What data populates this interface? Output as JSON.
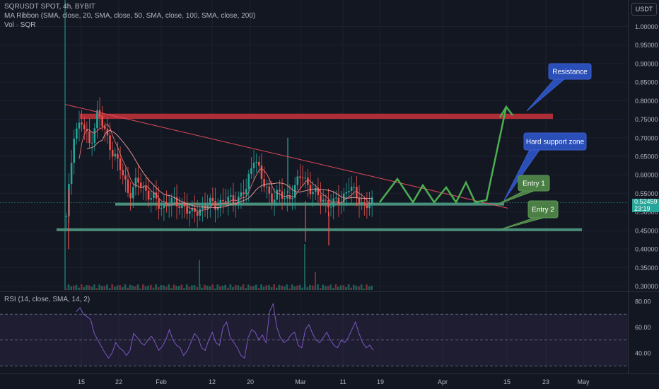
{
  "legend": {
    "symbol": "SQRUSDT SPOT, 4h, BYBIT",
    "ma_ribbon": "MA Ribbon (SMA, close, 20, SMA, close, 50, SMA, close, 100, SMA, close, 200)",
    "volume": "Vol · SQR",
    "rsi": "RSI (14, close, SMA, 14, 2)"
  },
  "currency": "USDT",
  "last_price": "0.52459",
  "countdown": "23:19",
  "colors": {
    "background": "#131722",
    "up": "#26a69a",
    "down": "#ef5350",
    "resistance": "#c0313a",
    "support": "#4a8f7a",
    "projection": "#4caf50",
    "trendline": "#e0485a",
    "rsi_line": "#7e57c2",
    "callout_blue": "#2a4fb8",
    "callout_green": "#4c7f46"
  },
  "chart_data": {
    "type": "candlestick",
    "symbol": "SQRUSDT",
    "timeframe": "4h",
    "exchange": "BYBIT",
    "price_axis": {
      "ylim": [
        0.29,
        1.02
      ],
      "ticks": [
        "1.00000",
        "0.95000",
        "0.90000",
        "0.85000",
        "0.80000",
        "0.75000",
        "0.70000",
        "0.65000",
        "0.60000",
        "0.55000",
        "0.50000",
        "0.45000",
        "0.40000",
        "0.35000",
        "0.30000"
      ]
    },
    "time_axis": {
      "ticks": [
        "15",
        "22",
        "Feb",
        "12",
        "20",
        "Mar",
        "11",
        "19",
        "Apr",
        "15",
        "23",
        "May"
      ]
    },
    "price_path": [
      [
        "15",
        0.48
      ],
      [
        "16",
        0.72
      ],
      [
        "17",
        0.74
      ],
      [
        "18",
        0.68
      ],
      [
        "19",
        0.77
      ],
      [
        "20",
        0.71
      ],
      [
        "21",
        0.66
      ],
      [
        "22",
        0.61
      ],
      [
        "25",
        0.55
      ],
      [
        "27",
        0.58
      ],
      [
        "29",
        0.56
      ],
      [
        "Feb",
        0.54
      ],
      [
        "04",
        0.51
      ],
      [
        "06",
        0.53
      ],
      [
        "08",
        0.52
      ],
      [
        "10",
        0.52
      ],
      [
        "12",
        0.49
      ],
      [
        "14",
        0.51
      ],
      [
        "16",
        0.52
      ],
      [
        "18",
        0.52
      ],
      [
        "20",
        0.53
      ],
      [
        "22",
        0.53
      ],
      [
        "24",
        0.54
      ],
      [
        "26",
        0.56
      ],
      [
        "27",
        0.66
      ],
      [
        "28",
        0.58
      ],
      [
        "29",
        0.54
      ],
      [
        "Mar",
        0.55
      ],
      [
        "02",
        0.53
      ],
      [
        "04",
        0.56
      ],
      [
        "05",
        0.6
      ],
      [
        "06",
        0.57
      ],
      [
        "07",
        0.54
      ],
      [
        "09",
        0.53
      ],
      [
        "11",
        0.52
      ],
      [
        "13",
        0.53
      ],
      [
        "14",
        0.57
      ],
      [
        "15",
        0.54
      ],
      [
        "16",
        0.52
      ],
      [
        "17",
        0.52
      ]
    ],
    "levels": [
      {
        "label": "Resistance",
        "low": 0.751,
        "high": 0.765
      },
      {
        "label": "Hard support zone",
        "value": 0.521
      },
      {
        "label": "Entry 2",
        "value": 0.452
      }
    ],
    "annotations": [
      "Resistance",
      "Hard support zone",
      "Entry 1",
      "Entry 2"
    ],
    "rsi": {
      "ticks": [
        "80.00",
        "60.00",
        "40.00"
      ],
      "ylim": [
        28,
        84
      ],
      "upper_band": 70,
      "middle": 50,
      "lower_band": 30,
      "values": [
        72,
        75,
        70,
        68,
        66,
        55,
        50,
        45,
        40,
        36,
        40,
        48,
        44,
        42,
        38,
        42,
        55,
        52,
        48,
        46,
        50,
        53,
        48,
        42,
        45,
        50,
        58,
        50,
        46,
        44,
        38,
        42,
        48,
        55,
        52,
        44,
        42,
        50,
        56,
        48,
        46,
        60,
        64,
        52,
        48,
        44,
        38,
        36,
        52,
        58,
        56,
        50,
        54,
        48,
        72,
        78,
        60,
        52,
        48,
        50,
        54,
        56,
        46,
        44,
        58,
        62,
        55,
        50,
        48,
        52,
        56,
        50,
        46,
        44,
        50,
        48,
        52,
        58,
        64,
        55,
        48,
        44,
        46,
        42
      ]
    }
  }
}
